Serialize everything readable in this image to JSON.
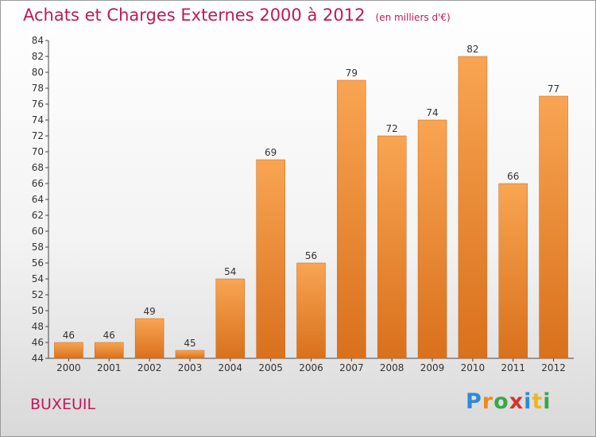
{
  "page": {
    "place": "BUXEUIL",
    "logo": {
      "letters": [
        "P",
        "r",
        "o",
        "x",
        "i",
        "t",
        "i"
      ],
      "colors": [
        "#2f8ad6",
        "#f08a1f",
        "#3aa64a",
        "#d8322a",
        "#2f8ad6",
        "#f0b41f",
        "#3aa64a"
      ]
    }
  },
  "chart_data": {
    "type": "bar",
    "title": "Achats et Charges Externes 2000 à 2012",
    "subtitle": "(en milliers d'€)",
    "categories": [
      "2000",
      "2001",
      "2002",
      "2003",
      "2004",
      "2005",
      "2006",
      "2007",
      "2008",
      "2009",
      "2010",
      "2011",
      "2012"
    ],
    "values": [
      46,
      46,
      49,
      45,
      54,
      69,
      56,
      79,
      72,
      74,
      82,
      66,
      77
    ],
    "ylim": [
      44,
      84
    ],
    "yticks": [
      44,
      46,
      48,
      50,
      52,
      54,
      56,
      58,
      60,
      62,
      64,
      66,
      68,
      70,
      72,
      74,
      76,
      78,
      80,
      82,
      84
    ],
    "grid": false,
    "bar_color_light": "#f8a552",
    "bar_color_dark": "#d9701c"
  }
}
